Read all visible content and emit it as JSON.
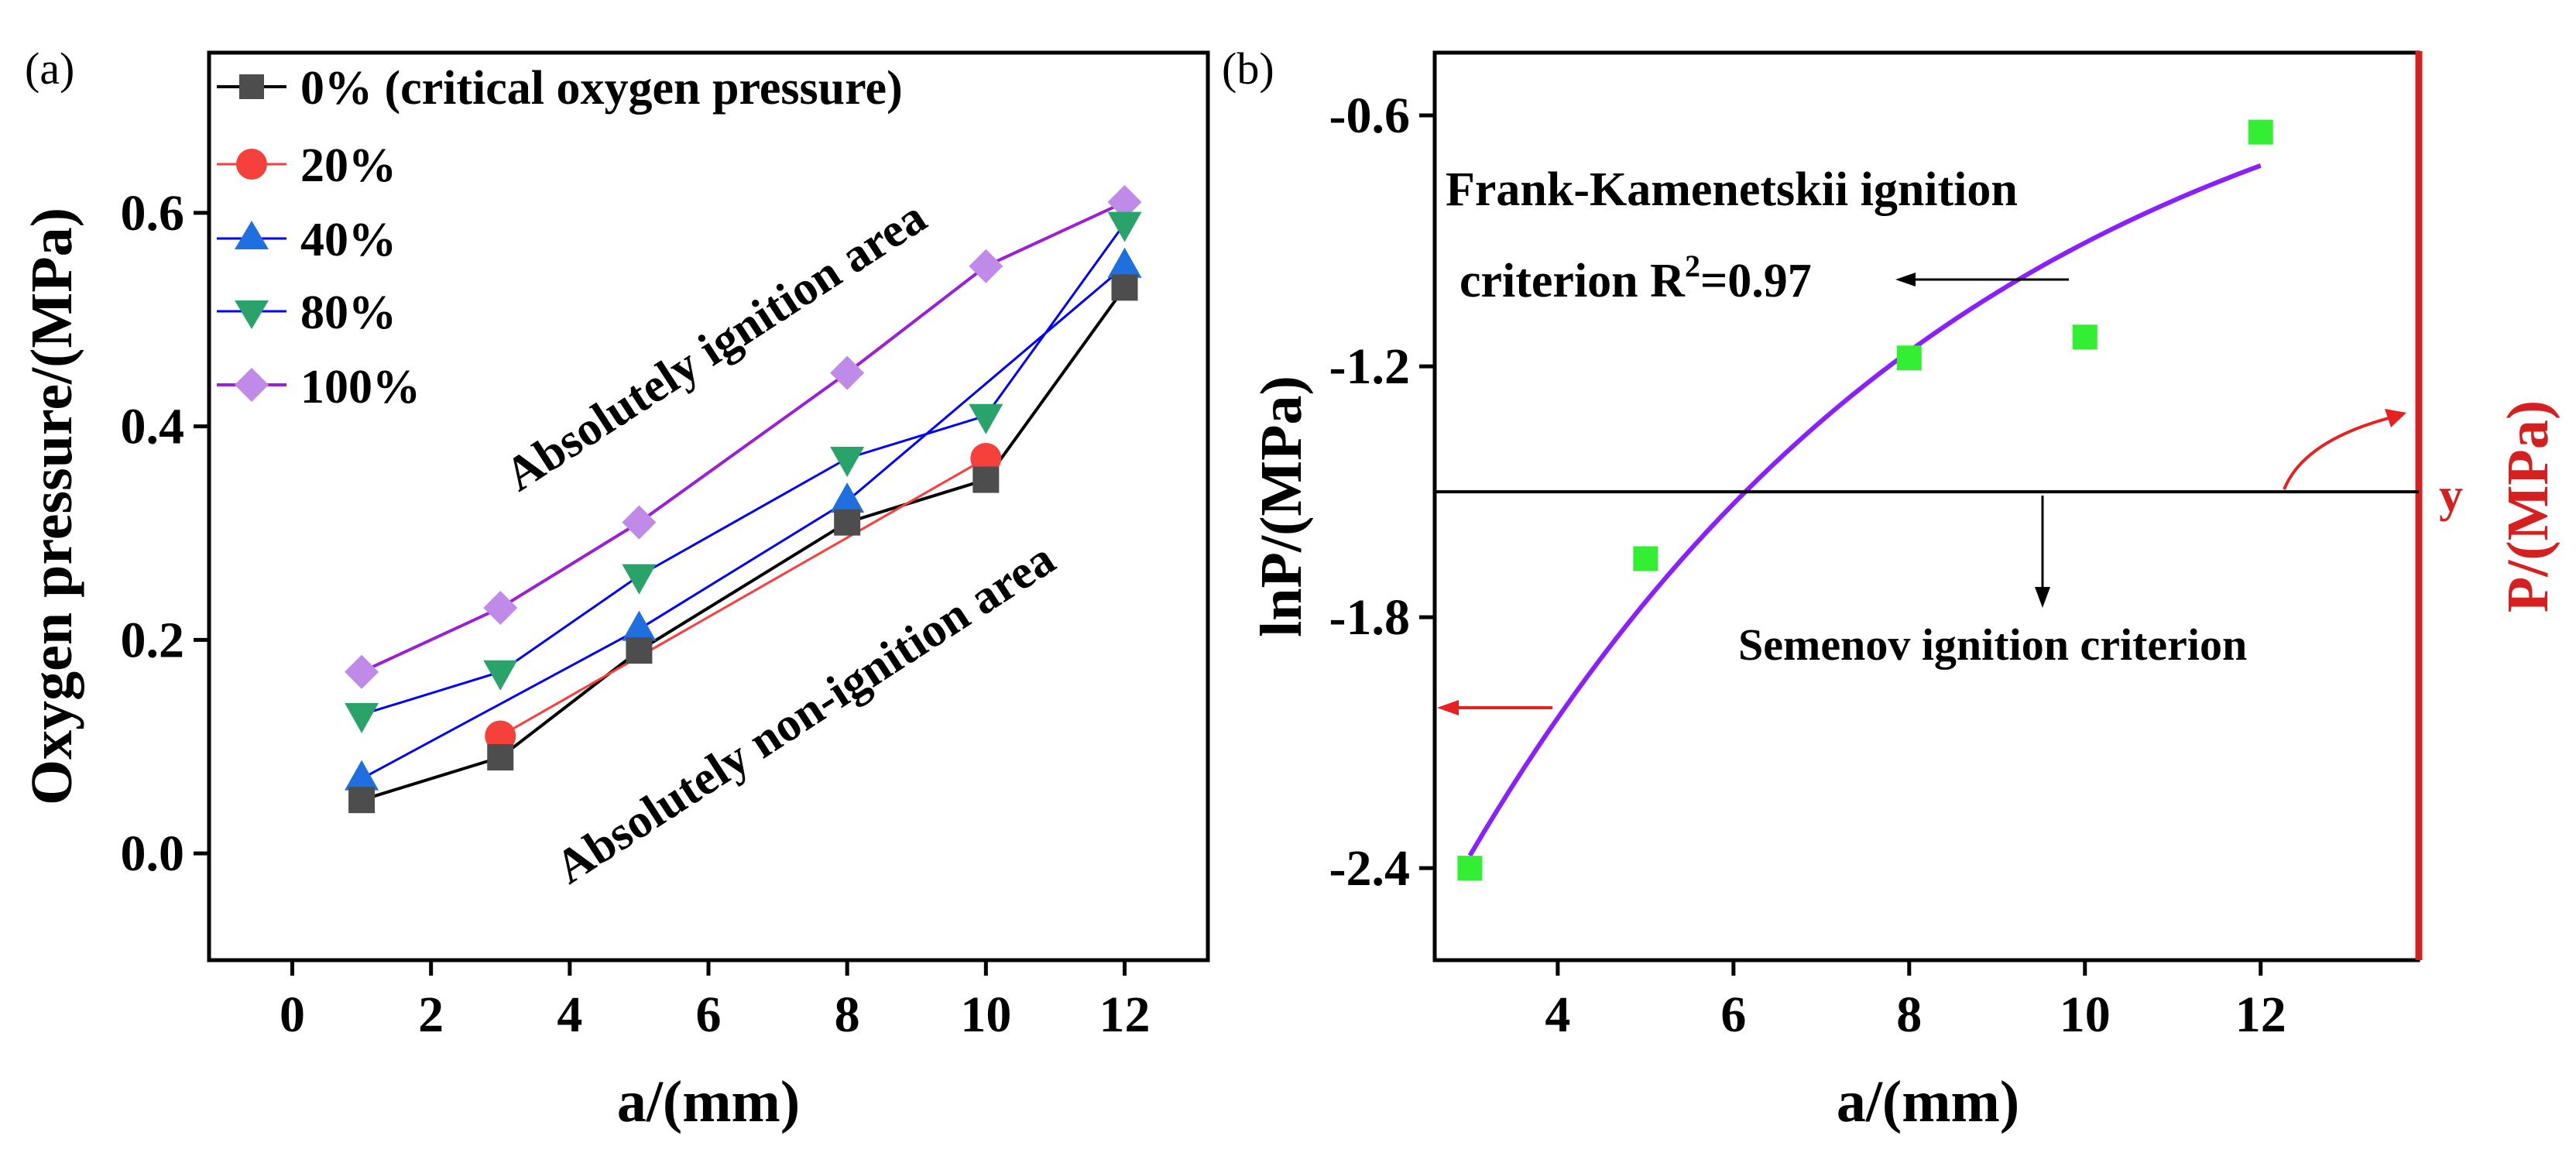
{
  "chart_data": [
    {
      "panel": "(a)",
      "type": "line",
      "xlabel": "a/(mm)",
      "ylabel": "Oxygen pressure/(MPa)",
      "xlim": [
        -1.2,
        13.2
      ],
      "ylim": [
        -0.1,
        0.75
      ],
      "xticks": [
        0,
        2,
        4,
        6,
        8,
        10,
        12
      ],
      "yticks": [
        0.0,
        0.2,
        0.4,
        0.6
      ],
      "ytick_labels": [
        "0.0",
        "0.2",
        "0.4",
        "0.6"
      ],
      "x": [
        1,
        3,
        5,
        8,
        10,
        12
      ],
      "series": [
        {
          "name": "0% (critical oxygen pressure)",
          "values": [
            0.05,
            0.09,
            0.19,
            0.31,
            0.35,
            0.53
          ],
          "color": "#000000",
          "marker_color": "#4d4d4d",
          "marker": "square"
        },
        {
          "name": "20%",
          "values": [
            null,
            0.11,
            null,
            null,
            0.37,
            null
          ],
          "color": "#ff3b3b",
          "marker_color": "#f5403c",
          "marker": "circle"
        },
        {
          "name": "40%",
          "values": [
            0.07,
            null,
            0.21,
            0.33,
            null,
            0.55
          ],
          "color": "#0000ff",
          "marker_color": "#1f6fe0",
          "marker": "triangle-up"
        },
        {
          "name": "80%",
          "values": [
            0.13,
            0.17,
            0.26,
            0.37,
            0.41,
            0.59
          ],
          "color": "#0000ff",
          "marker_color": "#2aa36b",
          "marker": "triangle-down"
        },
        {
          "name": "100%",
          "values": [
            0.17,
            0.23,
            0.31,
            0.45,
            0.55,
            0.61
          ],
          "color": "#9a1fd6",
          "marker_color": "#c08ae8",
          "marker": "diamond"
        }
      ],
      "annotations": [
        "Absolutely ignition area",
        "Absolutely non-ignition area"
      ]
    },
    {
      "panel": "(b)",
      "type": "scatter",
      "xlabel": "a/(mm)",
      "ylabel": "lnP/(MPa)",
      "ylabel_right": "P/(MPa)",
      "right_axis_marker": "y",
      "xlim": [
        2.6,
        13.8
      ],
      "ylim": [
        -2.62,
        -0.45
      ],
      "xticks": [
        4,
        6,
        8,
        10,
        12
      ],
      "yticks": [
        -0.6,
        -1.2,
        -1.8,
        -2.4
      ],
      "ytick_labels": [
        "-0.6",
        "-1.2",
        "-1.8",
        "-2.4"
      ],
      "points": {
        "x": [
          3,
          5,
          8,
          10,
          12
        ],
        "y": [
          -2.4,
          -1.66,
          -1.18,
          -1.13,
          -0.64
        ],
        "color": "#33ee33",
        "marker": "square"
      },
      "fit": {
        "x_start": 3,
        "x_end": 12,
        "y_start": -2.37,
        "y_end": -0.72,
        "color": "#8a1fff"
      },
      "semenov_line_y": -1.5,
      "annotations": {
        "fk_line1": "Frank-Kamenetskii ignition",
        "fk_line2_prefix": "criterion R",
        "fk_sup": "2",
        "fk_line2_suffix": "=0.97",
        "semenov": "Semenov ignition criterion"
      },
      "colors": {
        "right_axis": "#d62020",
        "arrow": "#e82020"
      }
    }
  ]
}
